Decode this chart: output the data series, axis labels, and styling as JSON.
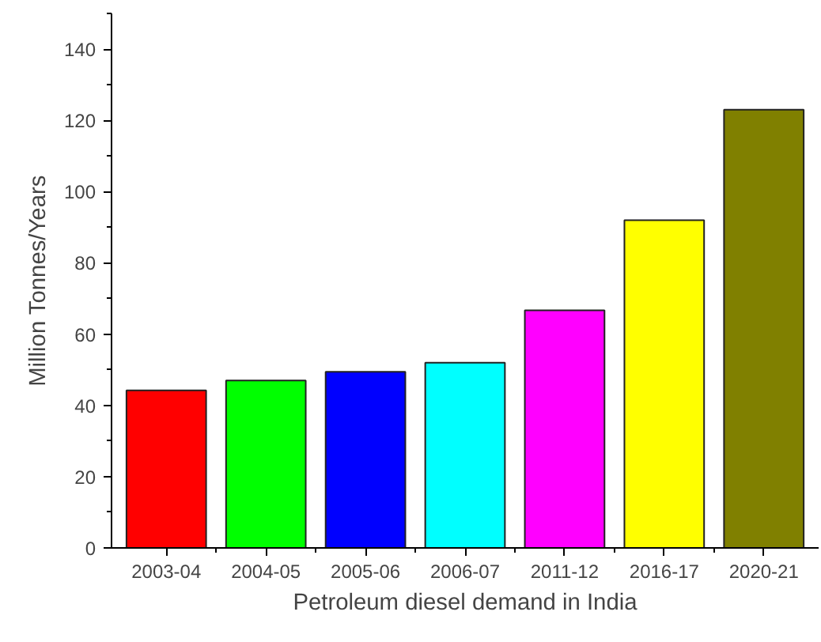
{
  "chart_data": {
    "type": "bar",
    "xlabel": "Petroleum diesel demand in India",
    "ylabel": "Million Tonnes/Years",
    "categories": [
      "2003-04",
      "2004-05",
      "2005-06",
      "2006-07",
      "2011-12",
      "2016-17",
      "2020-21"
    ],
    "values": [
      44.2,
      47.0,
      49.4,
      52.0,
      66.7,
      92.0,
      123.0
    ],
    "colors": [
      "#ff0000",
      "#00ff00",
      "#0000ff",
      "#00ffff",
      "#ff00ff",
      "#ffff00",
      "#808000"
    ],
    "ylim": [
      0,
      150
    ],
    "yticks": [
      0,
      20,
      40,
      60,
      80,
      100,
      120,
      140
    ],
    "grid": false
  }
}
